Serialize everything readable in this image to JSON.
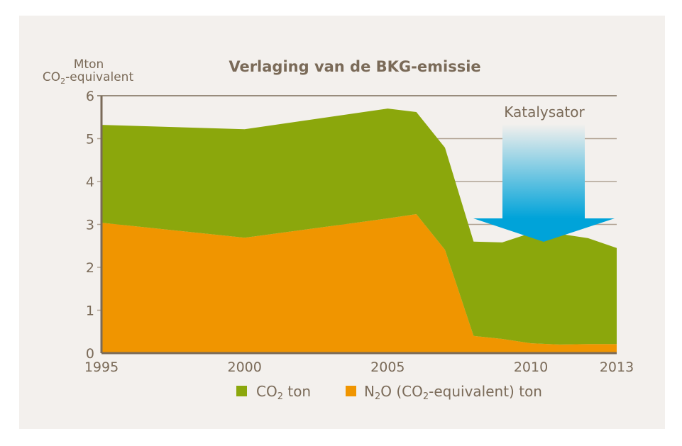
{
  "chart_data": {
    "type": "area",
    "stacked": true,
    "title": "Verlaging van de BKG-emissie",
    "ylabel_line1": "Mton",
    "ylabel_line2_pre": "CO",
    "ylabel_line2_sub": "2",
    "ylabel_line2_post": "-equivalent",
    "ylim": [
      0,
      6
    ],
    "yticks": [
      "0",
      "1",
      "2",
      "3",
      "4",
      "5",
      "6"
    ],
    "xlim": [
      1995,
      2013
    ],
    "xticks": [
      "1995",
      "2000",
      "2005",
      "2010",
      "2013"
    ],
    "grid": true,
    "legend_position": "bottom",
    "x": [
      1995,
      2000,
      2005,
      2006,
      2007,
      2008,
      2009,
      2010,
      2011,
      2012,
      2013
    ],
    "series": [
      {
        "name": "N2O (CO2-equivalent) ton",
        "color": "#f09500",
        "values": [
          3.04,
          2.69,
          3.14,
          3.24,
          2.41,
          0.4,
          0.33,
          0.23,
          0.2,
          0.21,
          0.21
        ]
      },
      {
        "name": "CO2 ton",
        "color": "#8ba70c",
        "values": [
          2.28,
          2.53,
          2.56,
          2.38,
          2.38,
          2.2,
          2.25,
          2.57,
          2.58,
          2.47,
          2.24
        ]
      }
    ],
    "legend": [
      {
        "pre": "CO",
        "sub": "2",
        "post": " ton",
        "color": "#8ba70c"
      },
      {
        "pre": "N",
        "sub": "2",
        "post": "O (CO",
        "sub2": "2",
        "post2": "-equivalent) ton",
        "color": "#f09500"
      }
    ],
    "annotation": {
      "text": "Katalysator",
      "arrow_color": "#00a3d9",
      "arrow_at_x": 2010
    }
  }
}
